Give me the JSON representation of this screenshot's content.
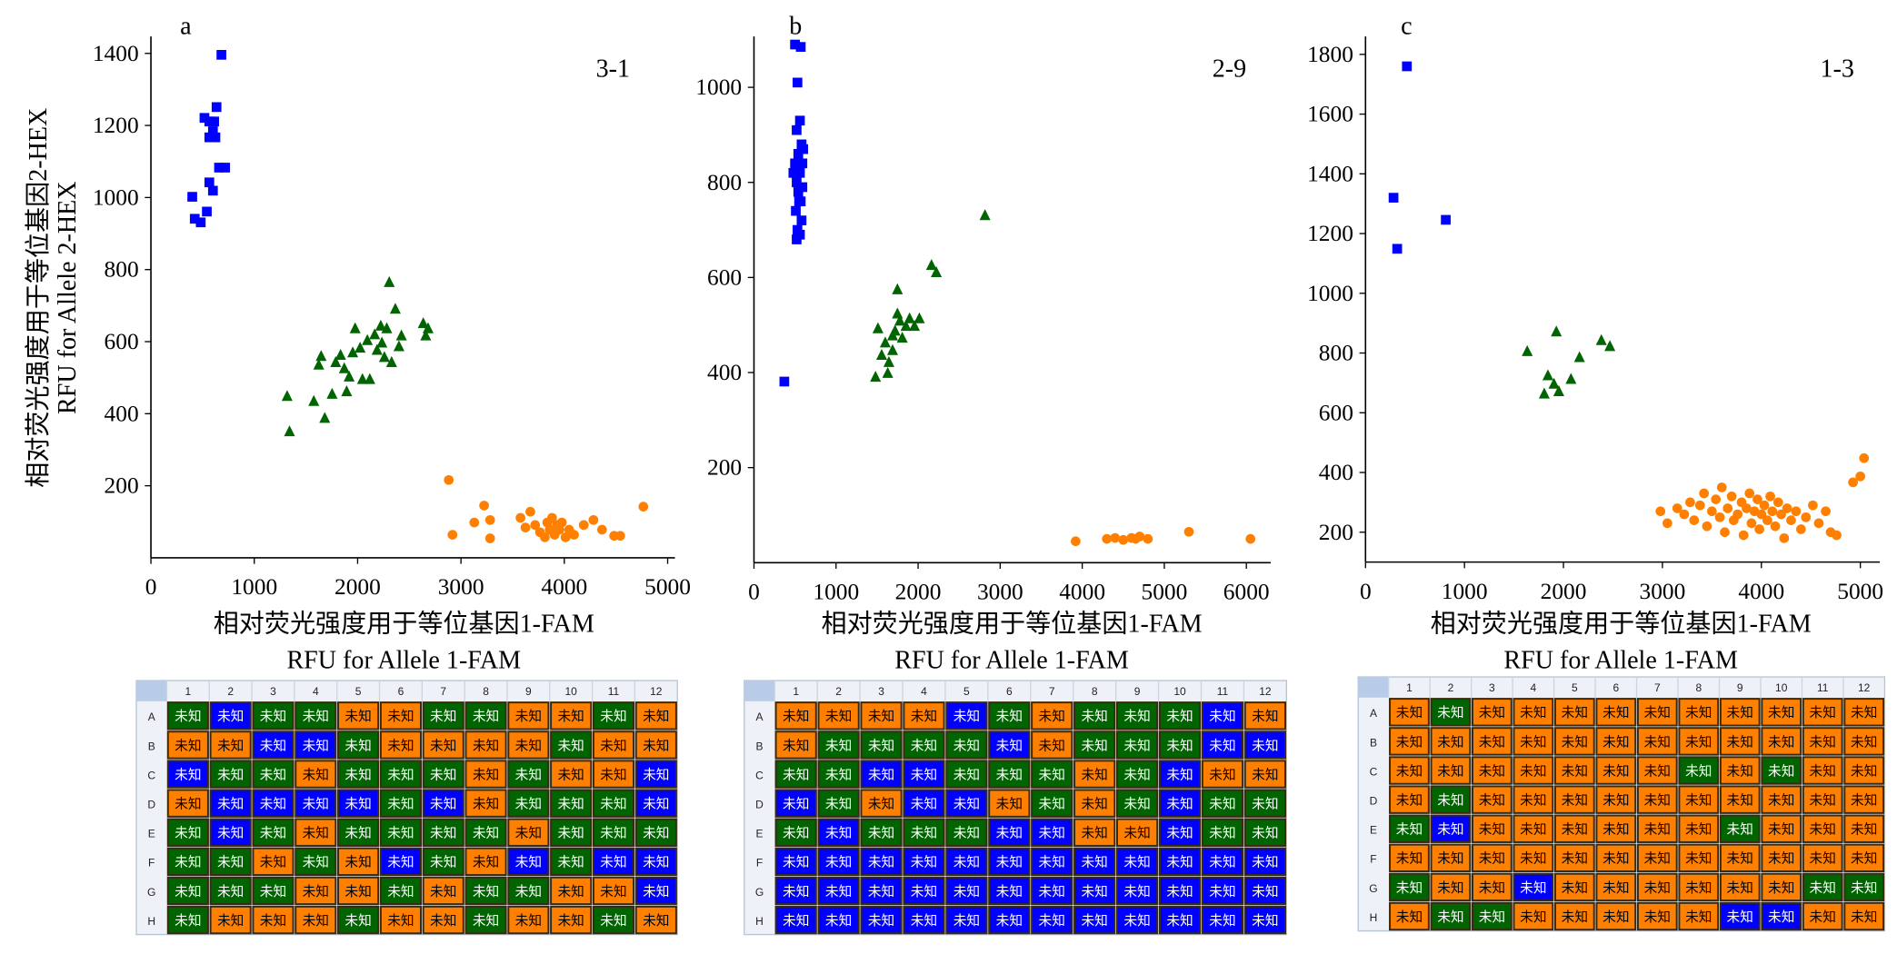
{
  "colors": {
    "blue": "#0000ff",
    "green": "#006400",
    "orange": "#ff8000"
  },
  "chart_data": [
    {
      "type": "scatter",
      "panel": "a",
      "title": "3-1",
      "xlabel": [
        "相对荧光强度用于等位基因1-FAM",
        "RFU for Allele 1-FAM"
      ],
      "ylabel": [
        "相对荧光强度用于等位基因2-HEX",
        "RFU for Allele 2-HEX"
      ],
      "xlim": [
        0,
        5000
      ],
      "ylim": [
        0,
        1447
      ],
      "xticks": [
        0,
        1000,
        2000,
        3000,
        4000,
        5000
      ],
      "yticks": [
        200,
        400,
        600,
        800,
        1000,
        1200,
        1400
      ],
      "series": [
        {
          "name": "blue",
          "marker": "square",
          "points": [
            [
              400,
              1002
            ],
            [
              424,
              941
            ],
            [
              482,
              931
            ],
            [
              518,
              1221
            ],
            [
              565,
              1211
            ],
            [
              541,
              961
            ],
            [
              565,
              1042
            ],
            [
              600,
              1019
            ],
            [
              600,
              1184
            ],
            [
              635,
              1251
            ],
            [
              624,
              1167
            ],
            [
              565,
              1167
            ],
            [
              659,
              1083
            ],
            [
              682,
              1396
            ],
            [
              718,
              1083
            ],
            [
              612,
              1211
            ]
          ]
        },
        {
          "name": "green",
          "marker": "triangle",
          "points": [
            [
              1318,
              449
            ],
            [
              1341,
              351
            ],
            [
              1576,
              435
            ],
            [
              1624,
              536
            ],
            [
              1647,
              560
            ],
            [
              1682,
              388
            ],
            [
              1753,
              455
            ],
            [
              1788,
              543
            ],
            [
              1835,
              563
            ],
            [
              1871,
              526
            ],
            [
              1894,
              462
            ],
            [
              1918,
              503
            ],
            [
              1953,
              570
            ],
            [
              1976,
              637
            ],
            [
              2024,
              583
            ],
            [
              2047,
              496
            ],
            [
              2094,
              604
            ],
            [
              2118,
              496
            ],
            [
              2165,
              620
            ],
            [
              2188,
              577
            ],
            [
              2224,
              644
            ],
            [
              2259,
              557
            ],
            [
              2282,
              637
            ],
            [
              2306,
              765
            ],
            [
              2329,
              543
            ],
            [
              2365,
              691
            ],
            [
              2400,
              587
            ],
            [
              2424,
              617
            ],
            [
              2635,
              651
            ],
            [
              2659,
              617
            ],
            [
              2682,
              637
            ],
            [
              2235,
              597
            ]
          ]
        },
        {
          "name": "orange",
          "marker": "circle",
          "points": [
            [
              2882,
              216
            ],
            [
              2918,
              64
            ],
            [
              3129,
              98
            ],
            [
              3224,
              145
            ],
            [
              3282,
              105
            ],
            [
              3282,
              54
            ],
            [
              3576,
              111
            ],
            [
              3624,
              84
            ],
            [
              3671,
              128
            ],
            [
              3718,
              91
            ],
            [
              3765,
              71
            ],
            [
              3812,
              57
            ],
            [
              3835,
              98
            ],
            [
              3859,
              78
            ],
            [
              3882,
              111
            ],
            [
              3906,
              64
            ],
            [
              3929,
              91
            ],
            [
              3953,
              78
            ],
            [
              3976,
              98
            ],
            [
              4012,
              57
            ],
            [
              4047,
              78
            ],
            [
              4094,
              64
            ],
            [
              4188,
              91
            ],
            [
              4282,
              105
            ],
            [
              4365,
              78
            ],
            [
              4482,
              61
            ],
            [
              4541,
              61
            ],
            [
              4765,
              142
            ]
          ]
        }
      ]
    },
    {
      "type": "scatter",
      "panel": "b",
      "title": "2-9",
      "xlabel": [
        "相对荧光强度用于等位基因1-FAM",
        "RFU for Allele 1-FAM"
      ],
      "xlim": [
        0,
        6300
      ],
      "ylim": [
        0,
        1107
      ],
      "xticks": [
        0,
        1000,
        2000,
        3000,
        4000,
        5000,
        6000
      ],
      "yticks": [
        200,
        400,
        600,
        800,
        1000
      ],
      "series": [
        {
          "name": "blue",
          "marker": "square",
          "points": [
            [
              370,
              381
            ],
            [
              500,
              1090
            ],
            [
              570,
              1085
            ],
            [
              530,
              1010
            ],
            [
              560,
              930
            ],
            [
              520,
              910
            ],
            [
              580,
              880
            ],
            [
              540,
              860
            ],
            [
              590,
              840
            ],
            [
              500,
              840
            ],
            [
              560,
              820
            ],
            [
              520,
              800
            ],
            [
              590,
              790
            ],
            [
              540,
              780
            ],
            [
              570,
              760
            ],
            [
              510,
              740
            ],
            [
              580,
              720
            ],
            [
              530,
              700
            ],
            [
              560,
              690
            ],
            [
              520,
              680
            ],
            [
              600,
              870
            ],
            [
              480,
              820
            ],
            [
              550,
              760
            ]
          ]
        },
        {
          "name": "green",
          "marker": "triangle",
          "points": [
            [
              1481,
              391
            ],
            [
              1511,
              493
            ],
            [
              1556,
              437
            ],
            [
              1600,
              463
            ],
            [
              1644,
              422
            ],
            [
              1689,
              447
            ],
            [
              1719,
              488
            ],
            [
              1748,
              524
            ],
            [
              1778,
              509
            ],
            [
              1807,
              473
            ],
            [
              1852,
              498
            ],
            [
              1896,
              514
            ],
            [
              1956,
              498
            ],
            [
              2015,
              514
            ],
            [
              1748,
              575
            ],
            [
              2163,
              626
            ],
            [
              2222,
              611
            ],
            [
              2815,
              731
            ],
            [
              1630,
              399
            ],
            [
              1689,
              478
            ]
          ]
        },
        {
          "name": "orange",
          "marker": "circle",
          "points": [
            [
              3920,
              45
            ],
            [
              4300,
              50
            ],
            [
              4400,
              52
            ],
            [
              4500,
              48
            ],
            [
              4600,
              52
            ],
            [
              4650,
              50
            ],
            [
              4700,
              55
            ],
            [
              4800,
              50
            ],
            [
              5300,
              65
            ],
            [
              6050,
              50
            ]
          ]
        }
      ]
    },
    {
      "type": "scatter",
      "panel": "c",
      "title": "1-3",
      "xlabel": [
        "相对荧光强度用于等位基因1-FAM",
        "RFU for Allele 1-FAM"
      ],
      "xlim": [
        0,
        5200
      ],
      "ylim": [
        100,
        1860
      ],
      "xticks": [
        0,
        1000,
        2000,
        3000,
        4000,
        5000
      ],
      "yticks": [
        200,
        400,
        600,
        800,
        1000,
        1200,
        1400,
        1600,
        1800
      ],
      "series": [
        {
          "name": "blue",
          "marker": "square",
          "points": [
            [
              283,
              1320
            ],
            [
              320,
              1149
            ],
            [
              418,
              1760
            ],
            [
              811,
              1246
            ]
          ]
        },
        {
          "name": "green",
          "marker": "triangle",
          "points": [
            [
              1634,
              806
            ],
            [
              1928,
              872
            ],
            [
              1843,
              725
            ],
            [
              1904,
              697
            ],
            [
              1953,
              672
            ],
            [
              1806,
              664
            ],
            [
              2076,
              713
            ],
            [
              2162,
              786
            ],
            [
              2383,
              843
            ],
            [
              2469,
              823
            ]
          ]
        },
        {
          "name": "orange",
          "marker": "circle",
          "points": [
            [
              2980,
              270
            ],
            [
              3050,
              230
            ],
            [
              3150,
              280
            ],
            [
              3220,
              260
            ],
            [
              3280,
              300
            ],
            [
              3320,
              240
            ],
            [
              3380,
              290
            ],
            [
              3420,
              330
            ],
            [
              3450,
              220
            ],
            [
              3500,
              270
            ],
            [
              3540,
              310
            ],
            [
              3580,
              250
            ],
            [
              3600,
              350
            ],
            [
              3630,
              200
            ],
            [
              3660,
              280
            ],
            [
              3700,
              320
            ],
            [
              3720,
              240
            ],
            [
              3760,
              260
            ],
            [
              3800,
              300
            ],
            [
              3820,
              190
            ],
            [
              3850,
              280
            ],
            [
              3880,
              330
            ],
            [
              3900,
              230
            ],
            [
              3930,
              270
            ],
            [
              3960,
              310
            ],
            [
              3980,
              210
            ],
            [
              4000,
              260
            ],
            [
              4030,
              290
            ],
            [
              4060,
              240
            ],
            [
              4090,
              320
            ],
            [
              4110,
              270
            ],
            [
              4140,
              220
            ],
            [
              4170,
              300
            ],
            [
              4200,
              260
            ],
            [
              4230,
              180
            ],
            [
              4260,
              280
            ],
            [
              4300,
              240
            ],
            [
              4350,
              270
            ],
            [
              4400,
              210
            ],
            [
              4450,
              250
            ],
            [
              4520,
              290
            ],
            [
              4580,
              230
            ],
            [
              4650,
              270
            ],
            [
              4700,
              200
            ],
            [
              4760,
              190
            ],
            [
              4926,
              367
            ],
            [
              5000,
              387
            ],
            [
              5037,
              448
            ]
          ]
        }
      ]
    }
  ],
  "plates": {
    "well_text": "未知",
    "columns": [
      "1",
      "2",
      "3",
      "4",
      "5",
      "6",
      "7",
      "8",
      "9",
      "10",
      "11",
      "12"
    ],
    "rows": [
      "A",
      "B",
      "C",
      "D",
      "E",
      "F",
      "G",
      "H"
    ],
    "a": [
      "GBGGOOGGOOGO",
      "OOBBGOOOOGOO",
      "BGGOGGGOGOOB",
      "OBBBBGBOGGGB",
      "GBGOGGGGOGGG",
      "GGOGOBGOBGBB",
      "GGGOOGOGGOOB",
      "GOOOGOOGOOGO"
    ],
    "b": [
      "OOOOBGOGGGBO",
      "OGGGGBOGGGBB",
      "GGBBGGGOGBOO",
      "BGOBBOGOGBGG",
      "GBGGGBBOOBGG",
      "BBBBBBBBBBBB",
      "BBBBBBBBBBBB",
      "BBBBBBBBBBBB"
    ],
    "c": [
      "OGOOOOOOOOOO",
      "OOOOOOOOOOOO",
      "OOOOOOOGOGOO",
      "OGOOOOOOOOOO",
      "GBOOOOOOGOOO",
      "OOOOOOOOOOOO",
      "GOOBOOOOOOGG",
      "OGGOOOOOBBOO"
    ]
  }
}
